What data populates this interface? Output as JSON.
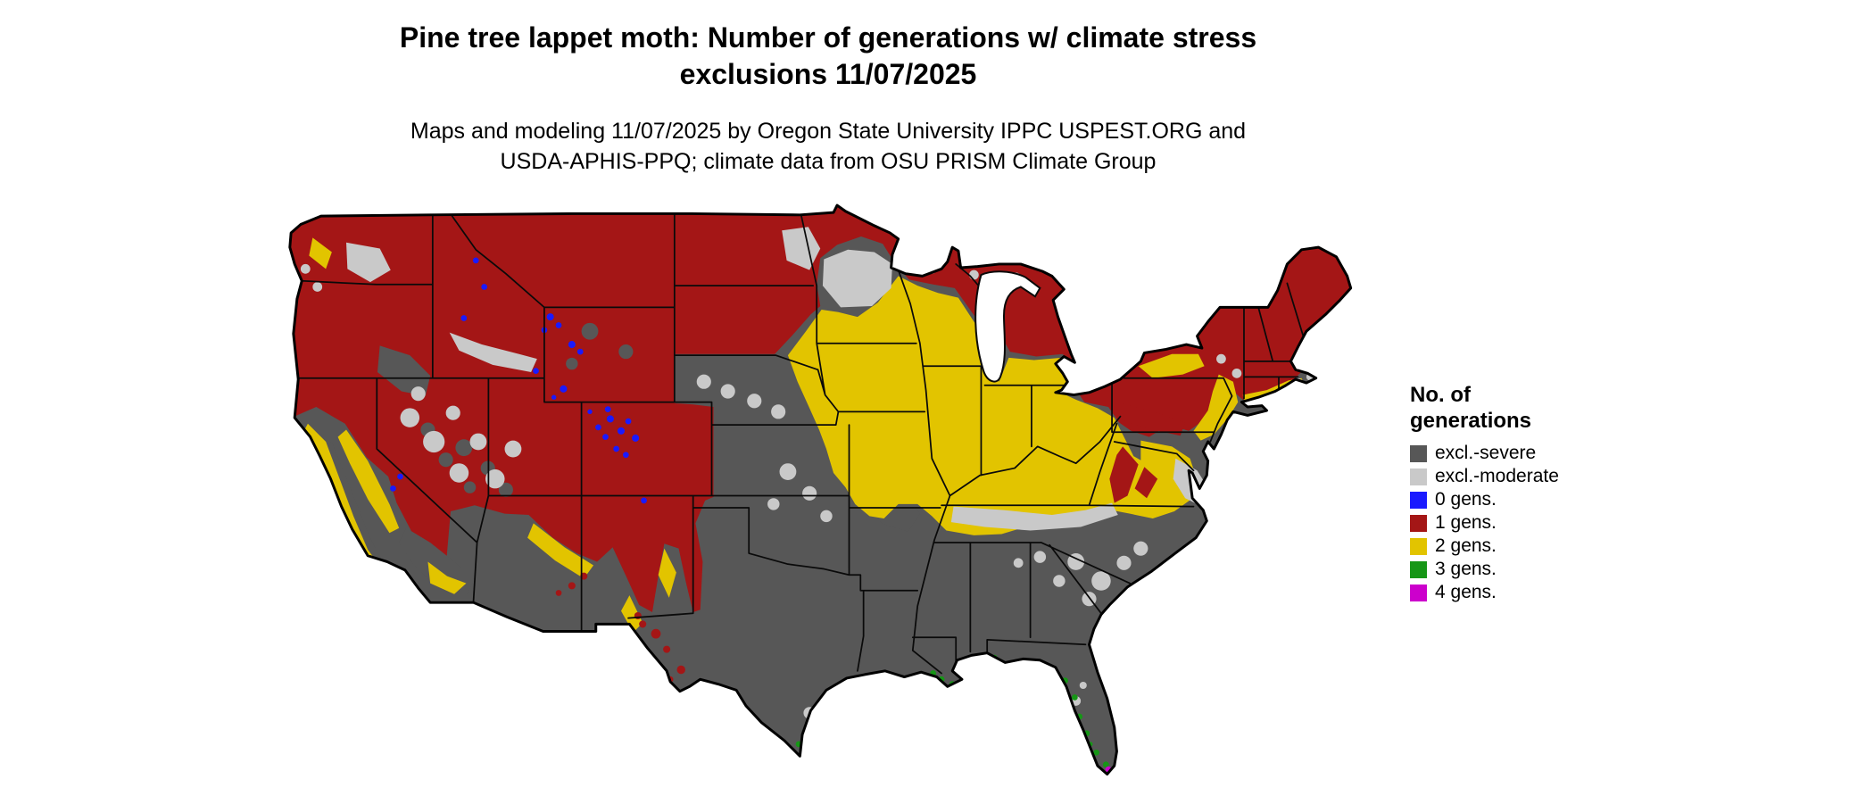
{
  "header": {
    "title_line1": "Pine tree lappet moth: Number of generations w/ climate stress",
    "title_line2": "exclusions 11/07/2025",
    "subtitle_line1": "Maps and modeling 11/07/2025 by Oregon State University IPPC USPEST.ORG and",
    "subtitle_line2": "USDA-APHIS-PPQ; climate data from OSU PRISM Climate Group"
  },
  "legend": {
    "title_line1": "No. of",
    "title_line2": "generations",
    "items": [
      {
        "label": "excl.-severe",
        "color": "#575757"
      },
      {
        "label": "excl.-moderate",
        "color": "#c9c9c9"
      },
      {
        "label": "0 gens.",
        "color": "#1a1aff"
      },
      {
        "label": "1 gens.",
        "color": "#a41616"
      },
      {
        "label": "2 gens.",
        "color": "#e2c400"
      },
      {
        "label": "3 gens.",
        "color": "#169616"
      },
      {
        "label": "4 gens.",
        "color": "#cc00cc"
      }
    ]
  },
  "map": {
    "region": "Contiguous United States",
    "type": "categorical climate-model raster with state boundaries",
    "legend_classes": [
      "excl.-severe",
      "excl.-moderate",
      "0 gens.",
      "1 gens.",
      "2 gens.",
      "3 gens.",
      "4 gens."
    ],
    "pattern_summary": {
      "one_generation": "Northern tier (MT, ND, northern MN/WI/MI), New England, New York, Rockies and mountain West, Pacific Northwest",
      "two_generations": "Central Midwest band (SE SD to OH), Kentucky, mid-Atlantic piedmont, Pacific coast ranges, AZ/NM mountain fringes",
      "excl_severe": "Southern states, Texas, Gulf states, Florida, desert Southwest, California Central Valley, western plains",
      "excl_moderate": "Transitional zones: central Minnesota, eastern Dakotas, Tennessee-Kentucky band, Southeast piedmont, mid-Atlantic coast, Great Basin valleys",
      "zero_generations": "Highest elevations of the Rockies, Yellowstone, Sierra Nevada crest",
      "three_generations": "Gulf Coast fringe, Florida coastal margins, south Texas tip",
      "four_generations": "Extreme south Florida and the Keys"
    }
  }
}
